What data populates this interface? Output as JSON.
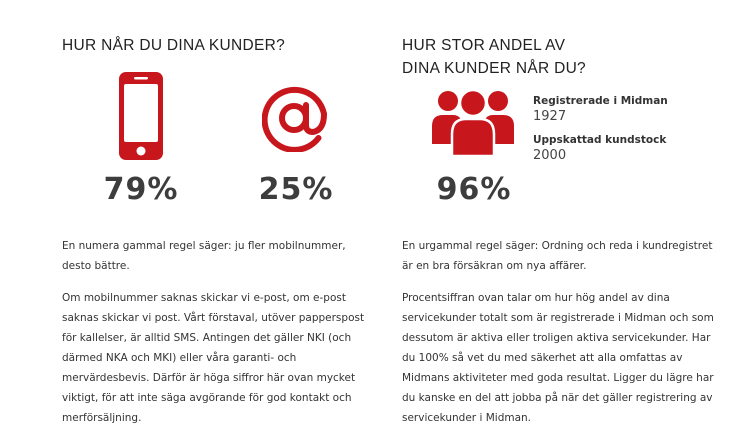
{
  "colors": {
    "accent": "#c8161d",
    "text": "#333333",
    "stat_number": "#3d3d3d"
  },
  "left": {
    "heading": "HUR NÅR DU DINA KUNDER?",
    "stats": [
      {
        "icon": "mobile-phone-icon",
        "value": "79%"
      },
      {
        "icon": "at-sign-icon",
        "value": "25%"
      }
    ],
    "paragraphs": [
      [
        "En numera gammal regel säger: ju fler mobilnummer,",
        "desto bättre."
      ],
      [
        "Om mobilnummer saknas skickar vi e-post, om e-post",
        "saknas skickar vi post. Vårt förstaval, utöver papperspost",
        "för kallelser, är alltid SMS. Antingen det gäller NKI (och",
        "därmed NKA och MKI) eller våra garanti- och",
        "mervärdesbevis. Därför är höga siffror här ovan mycket",
        "viktigt, för att inte säga avgörande för god kontakt och",
        "merförsäljning."
      ]
    ]
  },
  "right": {
    "heading_lines": [
      "HUR STOR ANDEL AV",
      "DINA KUNDER NÅR DU?"
    ],
    "icon": "people-group-icon",
    "value": "96%",
    "registered_label": "Registrerade i Midman",
    "registered_value": "1927",
    "estimated_label": "Uppskattad kundstock",
    "estimated_value": "2000",
    "paragraphs": [
      [
        "En urgammal regel säger: Ordning och reda i kundregistret",
        "är en bra försäkran om nya affärer."
      ],
      [
        "Procentsiffran ovan talar om hur hög andel av dina",
        "servicekunder totalt som är registrerade i Midman och som",
        "dessutom är aktiva eller troligen aktiva servicekunder. Har",
        "du 100% så vet du med säkerhet att alla omfattas av",
        "Midmans aktiviteter med goda resultat. Ligger du lägre har",
        "du kanske en del att jobba på när det gäller registrering av",
        "servicekunder i Midman."
      ]
    ]
  }
}
